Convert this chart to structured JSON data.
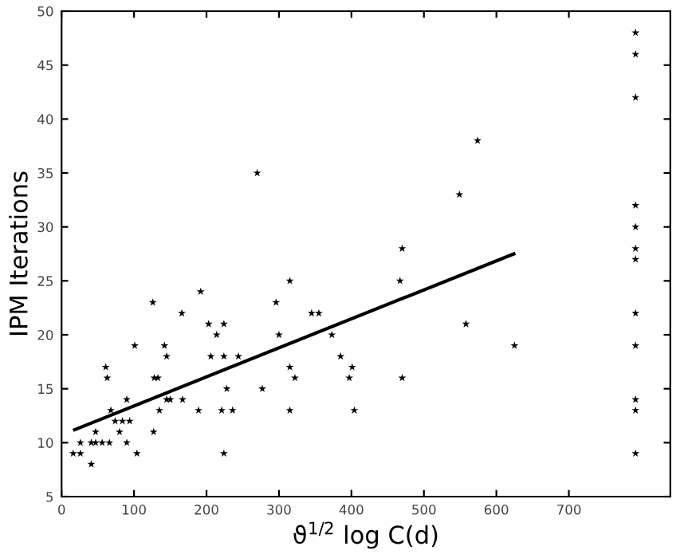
{
  "chart_data": {
    "type": "scatter",
    "xlabel": "ϑ$^{1/2}$ log C(d)",
    "ylabel": "IPM Iterations",
    "xlim": [
      0,
      840
    ],
    "ylim": [
      5,
      50
    ],
    "xticks": [
      0,
      100,
      200,
      300,
      400,
      500,
      600,
      700
    ],
    "yticks": [
      5,
      10,
      15,
      20,
      25,
      30,
      35,
      40,
      45,
      50
    ],
    "grid": false,
    "series": [
      {
        "marker": "star",
        "color": "#000000",
        "x": [
          16,
          26,
          26,
          41,
          41,
          47,
          47,
          56,
          61,
          63,
          66,
          68,
          74,
          80,
          84,
          90,
          90,
          94,
          101,
          104,
          126,
          127,
          128,
          133,
          135,
          142,
          145,
          145,
          150,
          166,
          167,
          189,
          192,
          203,
          206,
          214,
          221,
          224,
          224,
          224,
          228,
          236,
          244,
          270,
          277,
          296,
          300,
          315,
          315,
          315,
          322,
          345,
          355,
          373,
          385,
          397,
          401,
          404,
          467,
          470,
          470,
          549,
          558,
          574,
          625,
          792,
          792,
          792,
          792,
          792,
          792,
          792,
          792,
          792,
          792,
          792,
          792
        ],
        "values": [
          9,
          9,
          10,
          8,
          10,
          10,
          11,
          10,
          17,
          16,
          10,
          13,
          12,
          11,
          12,
          10,
          14,
          12,
          19,
          9,
          23,
          11,
          16,
          16,
          13,
          19,
          18,
          14,
          14,
          22,
          14,
          13,
          24,
          21,
          18,
          20,
          13,
          9,
          21,
          18,
          15,
          13,
          18,
          35,
          15,
          23,
          20,
          25,
          17,
          13,
          16,
          22,
          22,
          20,
          18,
          16,
          17,
          13,
          25,
          28,
          16,
          33,
          21,
          38,
          19,
          48,
          46,
          42,
          32,
          30,
          28,
          27,
          22,
          19,
          14,
          13,
          9
        ]
      },
      {
        "type": "line",
        "color": "#000000",
        "x": [
          18,
          624
        ],
        "values": [
          11.2,
          27.5
        ]
      }
    ]
  }
}
